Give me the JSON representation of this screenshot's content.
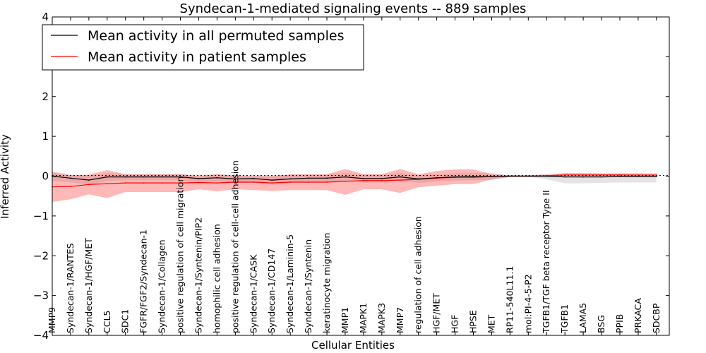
{
  "chart_data": {
    "type": "line",
    "title": "Syndecan-1-mediated signaling events -- 889 samples",
    "xlabel": "Cellular Entities",
    "ylabel": "Inferred Activity",
    "ylim": [
      -4,
      4
    ],
    "yticks": [
      -4,
      -3,
      -2,
      -1,
      0,
      1,
      2,
      3,
      4
    ],
    "ytick_labels": [
      "−4",
      "−3",
      "−2",
      "−1",
      "0",
      "1",
      "2",
      "3",
      "4"
    ],
    "legend_position": "top-left",
    "categories": [
      "MMP9",
      "Syndecan-1/RANTES",
      "Syndecan-1/HGF/MET",
      "CCL5",
      "SDC1",
      "FGFR/FGF2/Syndecan-1",
      "Syndecan-1/Collagen",
      "positive regulation of cell migration",
      "Syndecan-1/Syntenin/PIP2",
      "homophilic cell adhesion",
      "positive regulation of cell-cell adhesion",
      "Syndecan-1/CASK",
      "Syndecan-1/CD147",
      "Syndecan-1/Laminin-5",
      "Syndecan-1/Syntenin",
      "keratinocyte migration",
      "MMP1",
      "MAPK1",
      "MAPK3",
      "MMP7",
      "regulation of cell adhesion",
      "HGF/MET",
      "HGF",
      "HPSE",
      "MET",
      "RP11-540L11.1",
      "mol:PI-4-5-P2",
      "TGFB1/TGF beta receptor Type II",
      "TGFB1",
      "LAMA5",
      "BSG",
      "PPIB",
      "PRKACA",
      "SDCBP"
    ],
    "series": [
      {
        "name": "Mean activity in all permuted samples",
        "color": "#000000",
        "values": [
          0.0,
          -0.05,
          -0.1,
          -0.02,
          -0.02,
          -0.02,
          -0.02,
          -0.02,
          -0.06,
          -0.04,
          -0.07,
          -0.06,
          -0.1,
          -0.07,
          -0.05,
          -0.05,
          -0.02,
          -0.06,
          -0.06,
          -0.02,
          -0.07,
          -0.04,
          -0.02,
          -0.01,
          -0.01,
          0.0,
          0.0,
          0.0,
          -0.02,
          -0.02,
          -0.02,
          -0.01,
          -0.01,
          -0.01
        ],
        "band_upper": [
          0.12,
          0.05,
          0.02,
          0.08,
          0.06,
          0.06,
          0.06,
          0.06,
          0.04,
          0.05,
          0.03,
          0.04,
          0.02,
          0.03,
          0.04,
          0.04,
          0.08,
          0.04,
          0.04,
          0.08,
          0.03,
          0.05,
          0.07,
          0.08,
          0.08,
          0.02,
          0.02,
          0.02,
          0.08,
          0.08,
          0.08,
          0.08,
          0.08,
          0.08
        ],
        "band_lower": [
          -0.12,
          -0.15,
          -0.22,
          -0.12,
          -0.1,
          -0.1,
          -0.1,
          -0.1,
          -0.16,
          -0.13,
          -0.17,
          -0.16,
          -0.22,
          -0.17,
          -0.14,
          -0.14,
          -0.12,
          -0.16,
          -0.16,
          -0.12,
          -0.17,
          -0.13,
          -0.11,
          -0.1,
          -0.1,
          -0.02,
          -0.02,
          -0.08,
          -0.18,
          -0.18,
          -0.17,
          -0.16,
          -0.16,
          -0.16
        ]
      },
      {
        "name": "Mean activity in patient samples",
        "color": "#ff0000",
        "values": [
          -0.27,
          -0.26,
          -0.21,
          -0.19,
          -0.17,
          -0.17,
          -0.17,
          -0.17,
          -0.16,
          -0.17,
          -0.15,
          -0.15,
          -0.17,
          -0.15,
          -0.15,
          -0.15,
          -0.13,
          -0.11,
          -0.11,
          -0.1,
          -0.08,
          -0.05,
          -0.03,
          -0.03,
          -0.01,
          0.0,
          0.0,
          0.01,
          0.03,
          0.03,
          0.03,
          0.03,
          0.03,
          0.03
        ],
        "band_upper": [
          0.1,
          0.02,
          0.04,
          0.15,
          0.05,
          0.05,
          0.05,
          0.05,
          0.0,
          0.05,
          0.01,
          0.0,
          0.0,
          0.05,
          0.05,
          0.05,
          0.18,
          0.05,
          0.05,
          0.18,
          0.05,
          0.13,
          0.17,
          0.17,
          0.05,
          0.02,
          0.02,
          0.05,
          0.07,
          0.07,
          0.06,
          0.06,
          0.04,
          0.04
        ],
        "band_lower": [
          -0.65,
          -0.58,
          -0.46,
          -0.55,
          -0.4,
          -0.4,
          -0.4,
          -0.4,
          -0.33,
          -0.38,
          -0.33,
          -0.35,
          -0.37,
          -0.35,
          -0.35,
          -0.35,
          -0.47,
          -0.33,
          -0.33,
          -0.42,
          -0.28,
          -0.24,
          -0.2,
          -0.2,
          -0.08,
          -0.02,
          -0.02,
          -0.02,
          0.0,
          0.0,
          0.0,
          0.0,
          0.0,
          0.0
        ]
      }
    ],
    "reference_line": {
      "value": 0,
      "style": "dotted"
    }
  }
}
